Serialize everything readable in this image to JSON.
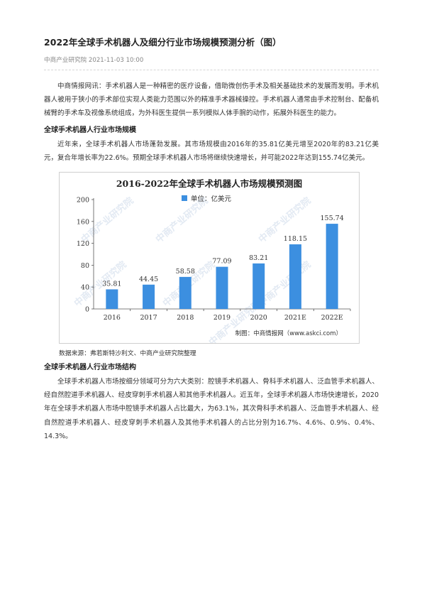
{
  "article": {
    "title": "2022年全球手术机器人及细分行业市场规模预测分析（图）",
    "meta": "中商产业研究院 2021-11-03 10:00",
    "intro": "中商情报网讯：手术机器人是一种精密的医疗设备，借助微创伤手术及相关基础技术的发展而发明。手术机器人被用于狭小的手术部位实现人类能力范围以外的精准手术器械操控。手术机器人通常由手术控制台、配备机械臂的手术车及视像系统组成，为外科医生提供一系列模拟人体手腕的动作，拓展外科医生的能力。",
    "section1_heading": "全球手术机器人行业市场规模",
    "section1_text": "近年来，全球手术机器人市场蓬勃发展。其市场规模由2016年的35.81亿美元增至2020年的83.21亿美元，复合年增长率为22.6%。预期全球手术机器人市场将继续快速增长，并可能2022年达到155.74亿美元。",
    "source": "数据来源：弗若斯特沙利文、中商产业研究院整理",
    "section2_heading": "全球手术机器人行业市场结构",
    "section2_text": "全球手术机器人市场按细分领域可分为六大类别：腔镜手术机器人、骨科手术机器人、泛血管手术机器人、经自然腔道手术机器人、经皮穿刺手术机器人和其他手术机器人。近五年，全球手术机器人市场快速增长，2020年在全球手术机器人市场中腔镜手术机器人占比最大，为63.1%，其次骨科手术机器人、泛血管手术机器人、经自然腔道手术机器人、经皮穿刺手术机器人及其他手术机器人的占比分别为16.7%、4.6%、0.9%、0.4%、14.3%。"
  },
  "chart_data": {
    "type": "bar",
    "title": "2016-2022年全球手术机器人市场规模预测图",
    "legend": "单位：亿美元",
    "legend_position": "top",
    "categories": [
      "2016",
      "2017",
      "2018",
      "2019",
      "2020",
      "2021E",
      "2022E"
    ],
    "values": [
      35.81,
      44.45,
      58.58,
      77.09,
      83.21,
      118.15,
      155.74
    ],
    "value_labels": [
      "35.81",
      "44.45",
      "58.58",
      "77.09",
      "83.21",
      "118.15",
      "155.74"
    ],
    "ylim": [
      0,
      200
    ],
    "yticks": [
      0,
      40,
      80,
      120,
      160,
      200
    ],
    "grid": false,
    "credit": "制图：中商情报网（www.askci.com）",
    "watermark": "中商产业研究院",
    "bar_color": "#3c8fe0"
  }
}
